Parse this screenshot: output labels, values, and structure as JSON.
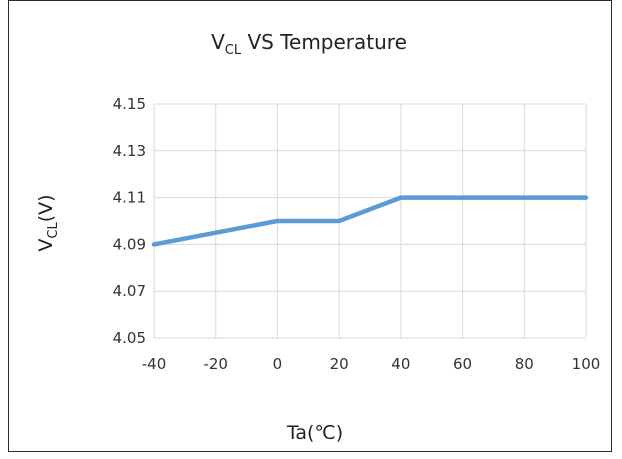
{
  "chart_data": {
    "type": "line",
    "title": {
      "main": "V",
      "sub": "CL",
      "rest": " VS Temperature"
    },
    "xlabel": "Ta(℃)",
    "ylabel": {
      "main": "V",
      "sub": "CL",
      "rest": "(V)"
    },
    "xlim": [
      -40,
      100
    ],
    "ylim": [
      4.05,
      4.15
    ],
    "x_ticks": [
      "-40",
      "-20",
      "0",
      "20",
      "40",
      "60",
      "80",
      "100"
    ],
    "y_ticks": [
      "4.05",
      "4.07",
      "4.09",
      "4.11",
      "4.13",
      "4.15"
    ],
    "grid": true,
    "series": [
      {
        "x": [
          -40,
          0,
          20,
          40,
          100
        ],
        "values": [
          4.09,
          4.1,
          4.1,
          4.11,
          4.11
        ],
        "color": "#5b9bd5"
      }
    ]
  }
}
